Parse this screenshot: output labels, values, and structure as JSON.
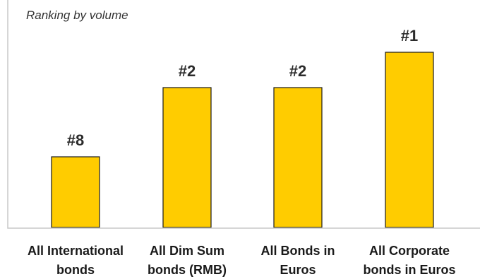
{
  "chart_data": {
    "type": "bar",
    "subtitle": "Ranking by volume",
    "categories": [
      [
        "All International",
        "bonds"
      ],
      [
        "All Dim Sum",
        "bonds (RMB)"
      ],
      [
        "All Bonds in",
        "Euros"
      ],
      [
        "All Corporate",
        "bonds in Euros"
      ]
    ],
    "ranks": [
      8,
      2,
      2,
      1
    ],
    "data_labels": [
      "#8",
      "#2",
      "#2",
      "#1"
    ],
    "bar_color": "#ffcc00",
    "grid": false,
    "legend": "none"
  }
}
